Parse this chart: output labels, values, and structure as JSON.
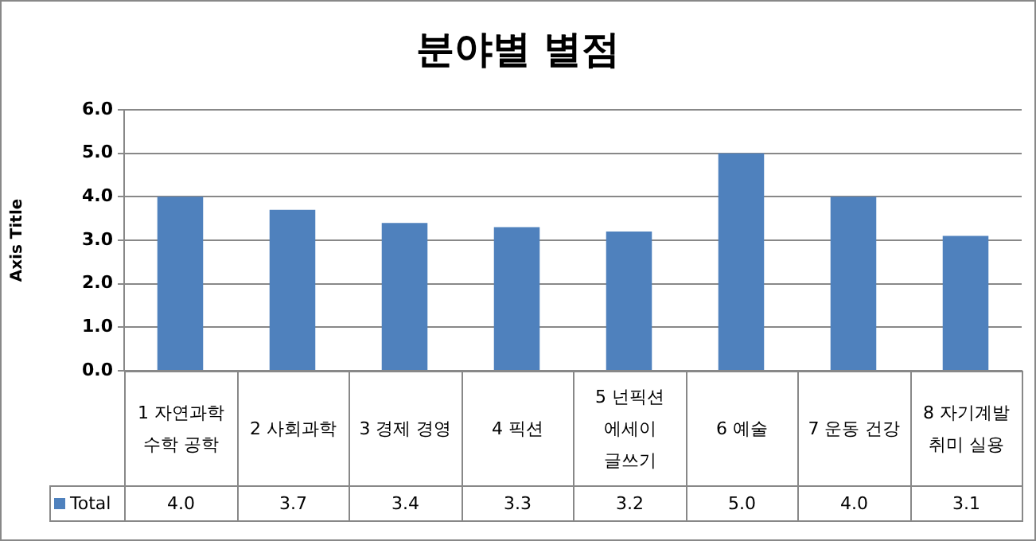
{
  "chart_data": {
    "type": "bar",
    "title": "분야별 별점",
    "ylabel": "Axis Title",
    "categories": [
      "1 자연과학 수학 공학",
      "2 사회과학",
      "3 경제 경영",
      "4 픽션",
      "5 넌픽션 에세이 글쓰기",
      "6 예술",
      "7 운동 건강",
      "8 자기계발 취미 실용"
    ],
    "series": [
      {
        "name": "Total",
        "color": "#4f81bd",
        "values": [
          4.0,
          3.7,
          3.4,
          3.3,
          3.2,
          5.0,
          4.0,
          3.1
        ],
        "value_labels": [
          "4.0",
          "3.7",
          "3.4",
          "3.3",
          "3.2",
          "5.0",
          "4.0",
          "3.1"
        ]
      }
    ],
    "ylim": [
      0,
      6
    ],
    "yticks": [
      {
        "value": 0,
        "label": "0.0"
      },
      {
        "value": 1,
        "label": "1.0"
      },
      {
        "value": 2,
        "label": "2.0"
      },
      {
        "value": 3,
        "label": "3.0"
      },
      {
        "value": 4,
        "label": "4.0"
      },
      {
        "value": 5,
        "label": "5.0"
      },
      {
        "value": 6,
        "label": "6.0"
      }
    ],
    "grid": "y",
    "legend": "bottom left"
  }
}
